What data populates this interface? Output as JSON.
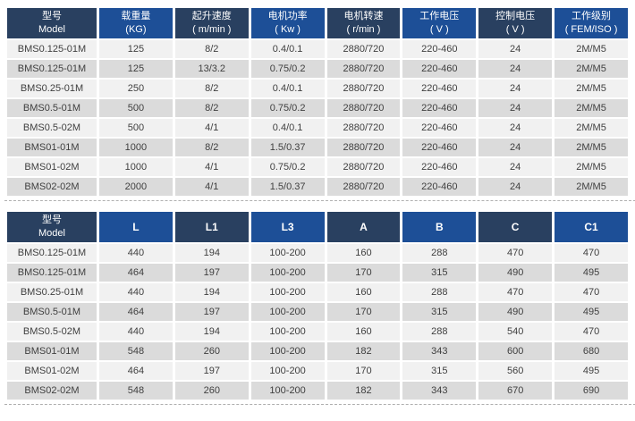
{
  "colors": {
    "header_dark": "#294060",
    "header_blue": "#1d4f97",
    "row_light": "#f1f1f1",
    "row_shaded": "#dbdbdb",
    "cell_text": "#3f3f3f",
    "header_text": "#ffffff",
    "divider": "#b0b0b0"
  },
  "performance_table": {
    "headers": [
      {
        "id": "model",
        "line1": "型号",
        "line2": "Model"
      },
      {
        "id": "load-capacity",
        "line1": "载重量",
        "line2": "(KG)"
      },
      {
        "id": "lifting-speed",
        "line1": "起升速度",
        "line2": "( m/min )"
      },
      {
        "id": "motor-power",
        "line1": "电机功率",
        "line2": "( Kw )"
      },
      {
        "id": "motor-speed",
        "line1": "电机转速",
        "line2": "( r/min )"
      },
      {
        "id": "working-voltage",
        "line1": "工作电压",
        "line2": "( V )"
      },
      {
        "id": "control-voltage",
        "line1": "控制电压",
        "line2": "( V )"
      },
      {
        "id": "working-class",
        "line1": "工作级别",
        "line2": "( FEM/ISO )"
      }
    ],
    "rows": [
      [
        "BMS0.125-01M",
        "125",
        "8/2",
        "0.4/0.1",
        "2880/720",
        "220-460",
        "24",
        "2M/M5"
      ],
      [
        "BMS0.125-01M",
        "125",
        "13/3.2",
        "0.75/0.2",
        "2880/720",
        "220-460",
        "24",
        "2M/M5"
      ],
      [
        "BMS0.25-01M",
        "250",
        "8/2",
        "0.4/0.1",
        "2880/720",
        "220-460",
        "24",
        "2M/M5"
      ],
      [
        "BMS0.5-01M",
        "500",
        "8/2",
        "0.75/0.2",
        "2880/720",
        "220-460",
        "24",
        "2M/M5"
      ],
      [
        "BMS0.5-02M",
        "500",
        "4/1",
        "0.4/0.1",
        "2880/720",
        "220-460",
        "24",
        "2M/M5"
      ],
      [
        "BMS01-01M",
        "1000",
        "8/2",
        "1.5/0.37",
        "2880/720",
        "220-460",
        "24",
        "2M/M5"
      ],
      [
        "BMS01-02M",
        "1000",
        "4/1",
        "0.75/0.2",
        "2880/720",
        "220-460",
        "24",
        "2M/M5"
      ],
      [
        "BMS02-02M",
        "2000",
        "4/1",
        "1.5/0.37",
        "2880/720",
        "220-460",
        "24",
        "2M/M5"
      ]
    ]
  },
  "dimensions_table": {
    "headers": [
      {
        "id": "model",
        "line1": "型号",
        "line2": "Model"
      },
      {
        "id": "L",
        "line1": "L"
      },
      {
        "id": "L1",
        "line1": "L1"
      },
      {
        "id": "L3",
        "line1": "L3"
      },
      {
        "id": "A",
        "line1": "A"
      },
      {
        "id": "B",
        "line1": "B"
      },
      {
        "id": "C",
        "line1": "C"
      },
      {
        "id": "C1",
        "line1": "C1"
      }
    ],
    "rows": [
      [
        "BMS0.125-01M",
        "440",
        "194",
        "100-200",
        "160",
        "288",
        "470",
        "470"
      ],
      [
        "BMS0.125-01M",
        "464",
        "197",
        "100-200",
        "170",
        "315",
        "490",
        "495"
      ],
      [
        "BMS0.25-01M",
        "440",
        "194",
        "100-200",
        "160",
        "288",
        "470",
        "470"
      ],
      [
        "BMS0.5-01M",
        "464",
        "197",
        "100-200",
        "170",
        "315",
        "490",
        "495"
      ],
      [
        "BMS0.5-02M",
        "440",
        "194",
        "100-200",
        "160",
        "288",
        "540",
        "470"
      ],
      [
        "BMS01-01M",
        "548",
        "260",
        "100-200",
        "182",
        "343",
        "600",
        "680"
      ],
      [
        "BMS01-02M",
        "464",
        "197",
        "100-200",
        "170",
        "315",
        "560",
        "495"
      ],
      [
        "BMS02-02M",
        "548",
        "260",
        "100-200",
        "182",
        "343",
        "670",
        "690"
      ]
    ]
  }
}
